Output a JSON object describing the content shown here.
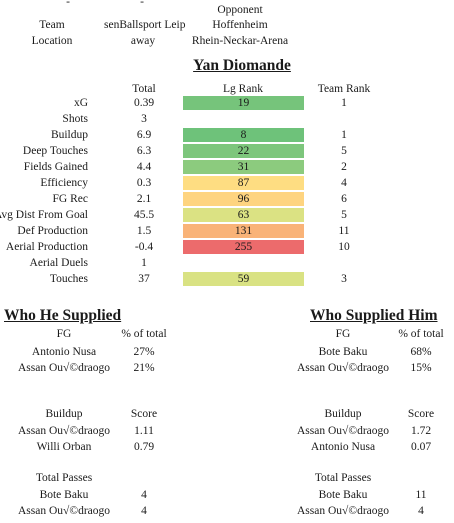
{
  "header": {
    "top_marks": [
      "-",
      "-"
    ],
    "opponent_label": "Opponent",
    "team_label": "Team",
    "team_value": "senBallsport Leip",
    "opponent_value": "Hoffenheim",
    "location_label": "Location",
    "location_value": "away",
    "venue_value": "Rhein-Neckar-Arena"
  },
  "player_name": "Yan Diomande",
  "stats_headers": {
    "total": "Total",
    "lg_rank": "Lg Rank",
    "team_rank": "Team Rank"
  },
  "stats": [
    {
      "label": "xG",
      "total": "0.39",
      "lg_rank": "19",
      "team_rank": "1",
      "color": "#76c47b"
    },
    {
      "label": "Shots",
      "total": "3",
      "lg_rank": "",
      "team_rank": "",
      "color": ""
    },
    {
      "label": "Buildup",
      "total": "6.9",
      "lg_rank": "8",
      "team_rank": "1",
      "color": "#6ec27a"
    },
    {
      "label": "Deep Touches",
      "total": "6.3",
      "lg_rank": "22",
      "team_rank": "5",
      "color": "#7dc67c"
    },
    {
      "label": "Fields Gained",
      "total": "4.4",
      "lg_rank": "31",
      "team_rank": "2",
      "color": "#8ccb7e"
    },
    {
      "label": "Efficiency",
      "total": "0.3",
      "lg_rank": "87",
      "team_rank": "4",
      "color": "#fedd82"
    },
    {
      "label": "FG Rec",
      "total": "2.1",
      "lg_rank": "96",
      "team_rank": "6",
      "color": "#fed480"
    },
    {
      "label": "Avg Dist From Goal",
      "total": "45.5",
      "lg_rank": "63",
      "team_rank": "5",
      "color": "#dbe283"
    },
    {
      "label": "Def Production",
      "total": "1.5",
      "lg_rank": "131",
      "team_rank": "11",
      "color": "#f9b378"
    },
    {
      "label": "Aerial Production",
      "total": "-0.4",
      "lg_rank": "255",
      "team_rank": "10",
      "color": "#ec6b6c"
    },
    {
      "label": "Aerial Duels",
      "total": "1",
      "lg_rank": "",
      "team_rank": "",
      "color": ""
    },
    {
      "label": "Touches",
      "total": "37",
      "lg_rank": "59",
      "team_rank": "3",
      "color": "#d9e283"
    }
  ],
  "who_he_supplied": {
    "title": "Who He Supplied",
    "fg": {
      "headers": [
        "FG",
        "% of total"
      ],
      "rows": [
        [
          "Antonio Nusa",
          "27%"
        ],
        [
          "Assan Ou√©draogo",
          "21%"
        ]
      ]
    },
    "buildup": {
      "headers": [
        "Buildup",
        "Score"
      ],
      "rows": [
        [
          "Assan Ou√©draogo",
          "1.11"
        ],
        [
          "Willi Orban",
          "0.79"
        ]
      ]
    },
    "passes": {
      "headers": [
        "Total Passes",
        ""
      ],
      "rows": [
        [
          "Bote Baku",
          "4"
        ],
        [
          "Assan Ou√©draogo",
          "4"
        ]
      ]
    }
  },
  "who_supplied_him": {
    "title": "Who Supplied Him",
    "fg": {
      "headers": [
        "FG",
        "% of total"
      ],
      "rows": [
        [
          "Bote Baku",
          "68%"
        ],
        [
          "Assan Ou√©draogo",
          "15%"
        ]
      ]
    },
    "buildup": {
      "headers": [
        "Buildup",
        "Score"
      ],
      "rows": [
        [
          "Assan Ou√©draogo",
          "1.72"
        ],
        [
          "Antonio Nusa",
          "0.07"
        ]
      ]
    },
    "passes": {
      "headers": [
        "Total Passes",
        ""
      ],
      "rows": [
        [
          "Bote Baku",
          "11"
        ],
        [
          "Assan Ou√©draogo",
          "4"
        ]
      ]
    }
  }
}
